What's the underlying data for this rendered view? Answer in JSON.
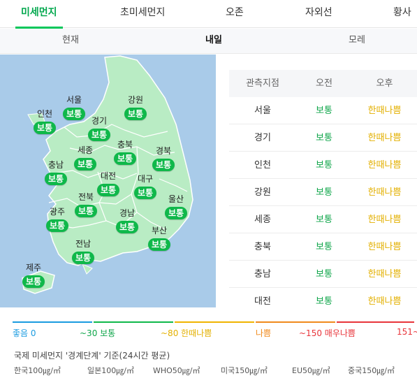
{
  "top_tabs": [
    {
      "label": "미세먼지",
      "active": true
    },
    {
      "label": "초미세먼지",
      "active": false
    },
    {
      "label": "오존",
      "active": false
    },
    {
      "label": "자외선",
      "active": false
    },
    {
      "label": "황사",
      "active": false
    }
  ],
  "sub_tabs": [
    {
      "label": "현재",
      "active": false
    },
    {
      "label": "내일",
      "active": true
    },
    {
      "label": "모레",
      "active": false
    }
  ],
  "map": {
    "regions": [
      {
        "name": "서울",
        "status": "보통"
      },
      {
        "name": "강원",
        "status": "보통"
      },
      {
        "name": "인천",
        "status": "보통"
      },
      {
        "name": "경기",
        "status": "보통"
      },
      {
        "name": "충북",
        "status": "보통"
      },
      {
        "name": "세종",
        "status": "보통"
      },
      {
        "name": "경북",
        "status": "보통"
      },
      {
        "name": "충남",
        "status": "보통"
      },
      {
        "name": "대전",
        "status": "보통"
      },
      {
        "name": "대구",
        "status": "보통"
      },
      {
        "name": "전북",
        "status": "보통"
      },
      {
        "name": "울산",
        "status": "보통"
      },
      {
        "name": "광주",
        "status": "보통"
      },
      {
        "name": "경남",
        "status": "보통"
      },
      {
        "name": "부산",
        "status": "보통"
      },
      {
        "name": "전남",
        "status": "보통"
      },
      {
        "name": "제주",
        "status": "보통"
      }
    ]
  },
  "table": {
    "headers": [
      "관측지점",
      "오전",
      "오후"
    ],
    "rows": [
      {
        "location": "서울",
        "am": "보통",
        "pm": "한때나쁨"
      },
      {
        "location": "경기",
        "am": "보통",
        "pm": "한때나쁨"
      },
      {
        "location": "인천",
        "am": "보통",
        "pm": "한때나쁨"
      },
      {
        "location": "강원",
        "am": "보통",
        "pm": "한때나쁨"
      },
      {
        "location": "세종",
        "am": "보통",
        "pm": "한때나쁨"
      },
      {
        "location": "충북",
        "am": "보통",
        "pm": "한때나쁨"
      },
      {
        "location": "충남",
        "am": "보통",
        "pm": "한때나쁨"
      },
      {
        "location": "대전",
        "am": "보통",
        "pm": "한때나쁨"
      }
    ]
  },
  "legend": {
    "items": [
      {
        "label": "좋음 0",
        "color": "#1a9be0"
      },
      {
        "label": "~30 보통",
        "color": "#0fb84a"
      },
      {
        "label": "~80 한때나쁨",
        "color": "#f0b400"
      },
      {
        "label": "나쁨",
        "color": "#f08a1c"
      },
      {
        "label": "~150 매우나쁨",
        "color": "#e8343a"
      },
      {
        "label": "151~",
        "color": "#e8343a"
      }
    ]
  },
  "standards": {
    "title": "국제 미세먼지 '경계단계' 기준(24시간 평균)",
    "items": [
      "한국100㎍/㎥",
      "일본100㎍/㎥",
      "WHO50㎍/㎥",
      "미국150㎍/㎥",
      "EU50㎍/㎥",
      "중국150㎍/㎥"
    ]
  },
  "colors": {
    "accent": "#03c75a",
    "normal": "#0fa64a",
    "bad_sometimes": "#e3b000",
    "map_land": "#b9ecc4",
    "map_sea": "#a9cbe9"
  }
}
